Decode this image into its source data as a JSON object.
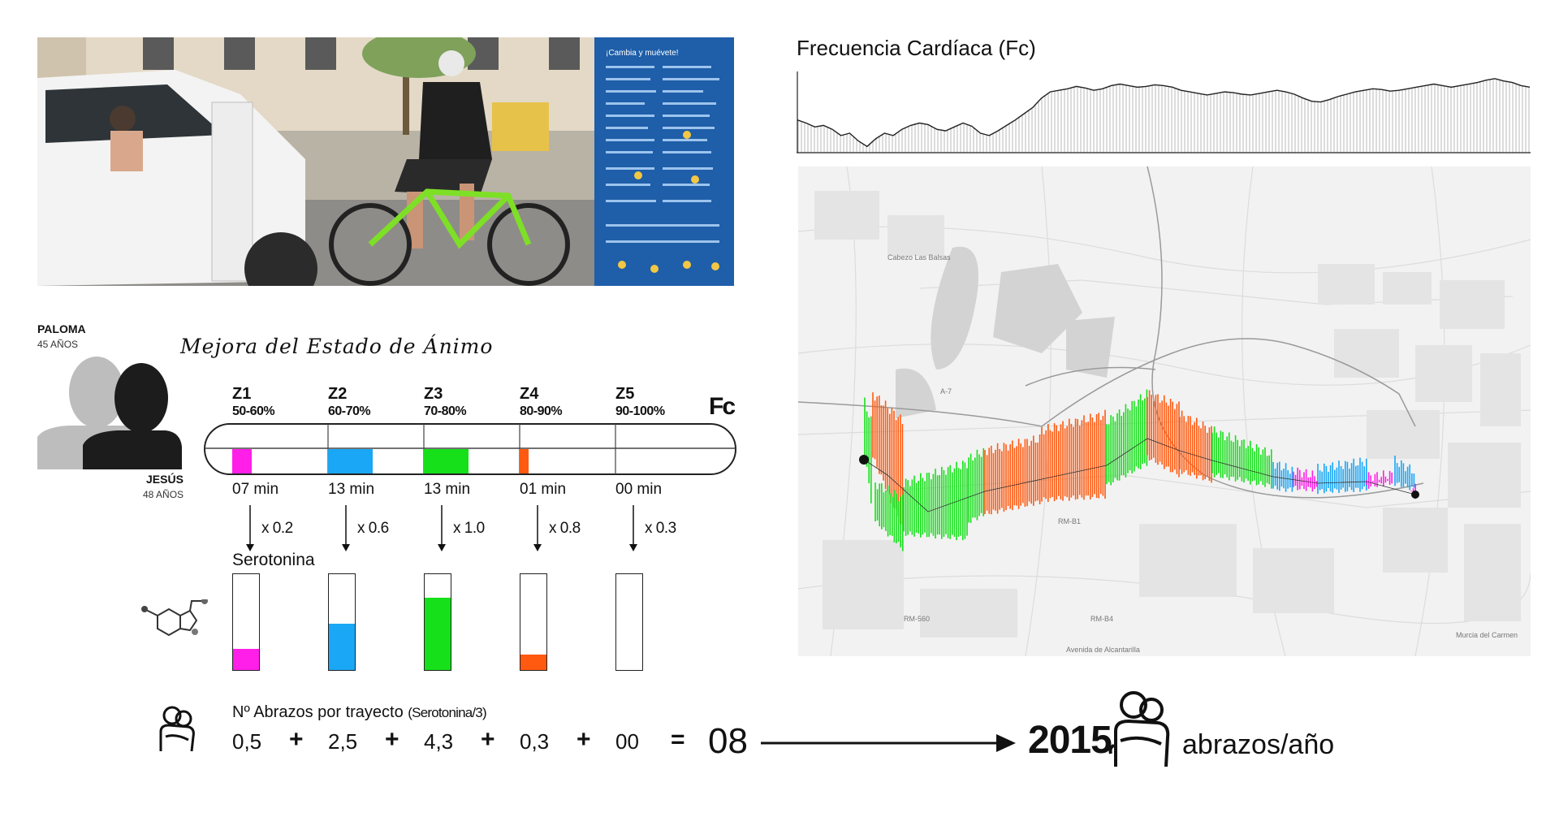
{
  "heart_rate": {
    "title": "Frecuencia Cardíaca (Fc)",
    "chart_data": {
      "type": "area",
      "title": "Frecuencia Cardíaca (Fc)",
      "values": [
        0.42,
        0.38,
        0.33,
        0.35,
        0.3,
        0.22,
        0.25,
        0.15,
        0.08,
        0.18,
        0.25,
        0.22,
        0.3,
        0.35,
        0.38,
        0.36,
        0.3,
        0.28,
        0.33,
        0.38,
        0.34,
        0.25,
        0.22,
        0.28,
        0.35,
        0.42,
        0.5,
        0.58,
        0.7,
        0.78,
        0.8,
        0.82,
        0.85,
        0.83,
        0.8,
        0.82,
        0.86,
        0.88,
        0.86,
        0.84,
        0.85,
        0.87,
        0.86,
        0.84,
        0.8,
        0.78,
        0.76,
        0.74,
        0.76,
        0.78,
        0.77,
        0.75,
        0.74,
        0.76,
        0.78,
        0.8,
        0.78,
        0.75,
        0.7,
        0.66,
        0.65,
        0.68,
        0.72,
        0.75,
        0.78,
        0.8,
        0.82,
        0.81,
        0.79,
        0.8,
        0.82,
        0.84,
        0.86,
        0.88,
        0.86,
        0.84,
        0.86,
        0.88,
        0.9,
        0.93,
        0.95,
        0.92,
        0.9,
        0.86,
        0.84
      ]
    }
  },
  "photo": {
    "poster_title": "¡Cambia y muévete!"
  },
  "mood": {
    "title": "Mejora del Estado de Ánimo",
    "fc_label": "Fc",
    "serotonin_label": "Serotonina",
    "colors": {
      "z1": "#ff1fe8",
      "z2": "#1aa7f5",
      "z3": "#16e01a",
      "z4": "#ff5a10",
      "z5": "#ffffff"
    },
    "zones": [
      {
        "name": "Z1",
        "range": "50-60%",
        "time": "07 min",
        "factor": "x 0.2",
        "time_fill": 0.22,
        "serotonin_fill": 0.22
      },
      {
        "name": "Z2",
        "range": "60-70%",
        "time": "13 min",
        "factor": "x 0.6",
        "time_fill": 0.5,
        "serotonin_fill": 0.48
      },
      {
        "name": "Z3",
        "range": "70-80%",
        "time": "13 min",
        "factor": "x 1.0",
        "time_fill": 0.5,
        "serotonin_fill": 0.75
      },
      {
        "name": "Z4",
        "range": "80-90%",
        "time": "01 min",
        "factor": "x 0.8",
        "time_fill": 0.1,
        "serotonin_fill": 0.16
      },
      {
        "name": "Z5",
        "range": "90-100%",
        "time": "00 min",
        "factor": "x 0.3",
        "time_fill": 0,
        "serotonin_fill": 0
      }
    ]
  },
  "persons": {
    "a": {
      "name": "PALOMA",
      "age": "45 AÑOS"
    },
    "b": {
      "name": "JESÚS",
      "age": "48 AÑOS"
    }
  },
  "hugs": {
    "label": "Nº Abrazos por trayecto",
    "label_suffix": "(Serotonina/3)",
    "terms": [
      "0,5",
      "2,5",
      "4,3",
      "0,3",
      "00"
    ],
    "plus": "+",
    "equals": "=",
    "total": "08",
    "annual_value": "2015",
    "annual_unit": "abrazos/año"
  },
  "map": {
    "labels": [
      "A-7",
      "RM-B1",
      "RM-B4",
      "RM-560",
      "Avenida de Alcantarilla",
      "Murcia del Carmen",
      "Cabezo Las Balsas"
    ]
  }
}
